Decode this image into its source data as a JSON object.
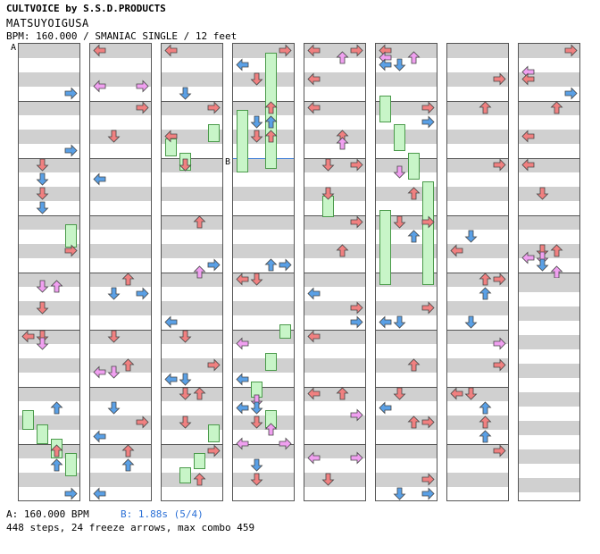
{
  "header": {
    "title_line": "CULTVOICE by S.S.D.PRODUCTS",
    "song_title": "MATSUYOIGUSA",
    "meta_line": "BPM: 160.000 / SMANIAC SINGLE / 12 feet"
  },
  "markers": {
    "a": "A",
    "b": "B"
  },
  "footer": {
    "bpm_a": "A: 160.000 BPM",
    "bpm_b": "B: 1.88s (5/4)",
    "stats": "448 steps, 24 freeze arrows, max combo 459"
  },
  "colors": {
    "quarter": "#f08080",
    "eighth": "#5aa0e6",
    "sixteenth": "#f0a0f0",
    "freeze": "#c8f5c8",
    "bpm_b": "#2a6fd6"
  },
  "chart": {
    "columns": 8,
    "lanes": [
      "left",
      "down",
      "up",
      "right"
    ]
  }
}
